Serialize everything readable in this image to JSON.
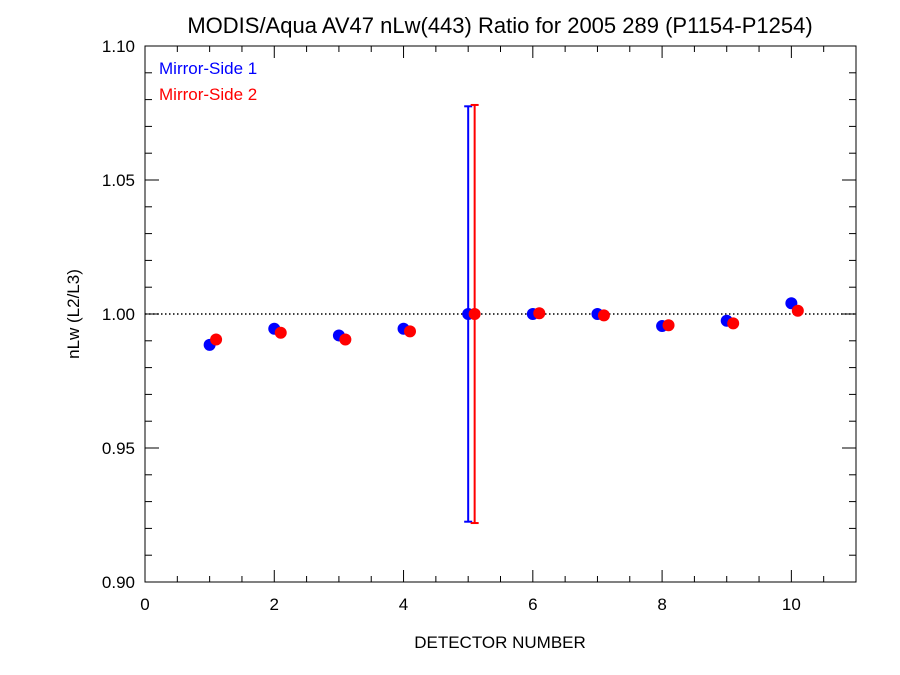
{
  "chart_data": {
    "type": "scatter",
    "title": "MODIS/Aqua AV47 nLw(443) Ratio for 2005 289 (P1154-P1254)",
    "xlabel": "DETECTOR NUMBER",
    "ylabel": "nLw (L2/L3)",
    "xlim": [
      0,
      11
    ],
    "ylim": [
      0.9,
      1.1
    ],
    "x_ticks": [
      0,
      2,
      4,
      6,
      8,
      10
    ],
    "x_tick_labels": [
      "0",
      "2",
      "4",
      "6",
      "8",
      "10"
    ],
    "y_ticks": [
      0.9,
      0.95,
      1.0,
      1.05,
      1.1
    ],
    "y_tick_labels": [
      "0.90",
      "0.95",
      "1.00",
      "1.05",
      "1.10"
    ],
    "reference_line": {
      "y": 1.0,
      "style": "dotted"
    },
    "legend_position": "top-left",
    "series": [
      {
        "name": "Mirror-Side 1",
        "color": "#0000ff",
        "x": [
          1,
          2,
          3,
          4,
          5,
          6,
          7,
          8,
          9,
          10
        ],
        "y": [
          0.9885,
          0.9945,
          0.992,
          0.9945,
          1.0,
          1.0,
          1.0,
          0.9955,
          0.9975,
          1.004
        ],
        "error_bars": [
          {
            "x": 5,
            "low": 0.9225,
            "high": 1.0775
          }
        ]
      },
      {
        "name": "Mirror-Side 2",
        "color": "#ff0000",
        "x": [
          1.1,
          2.1,
          3.1,
          4.1,
          5.1,
          6.1,
          7.1,
          8.1,
          9.1,
          10.1
        ],
        "y": [
          0.9905,
          0.993,
          0.9905,
          0.9935,
          1.0,
          1.0003,
          0.9995,
          0.9958,
          0.9965,
          1.0012
        ],
        "error_bars": [
          {
            "x": 5.1,
            "low": 0.922,
            "high": 1.078
          }
        ]
      }
    ]
  }
}
